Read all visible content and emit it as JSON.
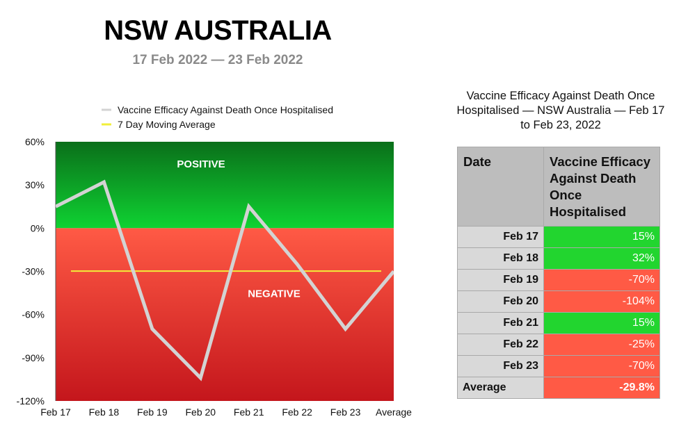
{
  "header": {
    "title": "NSW AUSTRALIA",
    "subtitle": "17 Feb 2022 — 23 Feb 2022"
  },
  "chart_data": {
    "type": "line",
    "categories": [
      "Feb 17",
      "Feb 18",
      "Feb 19",
      "Feb 20",
      "Feb 21",
      "Feb 22",
      "Feb 23",
      "Average"
    ],
    "series": [
      {
        "name": "Vaccine Efficacy Against Death Once Hospitalised",
        "values": [
          15,
          32,
          -70,
          -104,
          15,
          -25,
          -70,
          -30
        ],
        "color": "#d3d3d3"
      },
      {
        "name": "7 Day Moving Average",
        "values": [
          -29.8,
          -29.8,
          -29.8,
          -29.8,
          -29.8,
          -29.8,
          -29.8,
          -29.8
        ],
        "color": "#f2ef3a"
      }
    ],
    "ylim": [
      -120,
      60
    ],
    "yticks": [
      60,
      30,
      0,
      -30,
      -60,
      -90,
      -120
    ],
    "ytick_labels": [
      "60%",
      "30%",
      "0%",
      "-30%",
      "-60%",
      "-90%",
      "-120%"
    ],
    "legend_position": "top",
    "grid": false,
    "regions": [
      {
        "label": "POSITIVE",
        "from": 0,
        "to": 60,
        "color_top": "#0a6f1a",
        "color_bottom": "#0fd232"
      },
      {
        "label": "NEGATIVE",
        "from": -120,
        "to": 0,
        "color_top": "#ff5a45",
        "color_bottom": "#c4161c"
      }
    ]
  },
  "table": {
    "title": "Vaccine Efficacy Against Death Once Hospitalised — NSW Australia — Feb 17 to Feb 23, 2022",
    "headers": [
      "Date",
      "Vaccine Efficacy Against Death Once Hospitalised"
    ],
    "rows": [
      {
        "date": "Feb 17",
        "value": "15%",
        "status": "pos"
      },
      {
        "date": "Feb 18",
        "value": "32%",
        "status": "pos"
      },
      {
        "date": "Feb 19",
        "value": "-70%",
        "status": "neg"
      },
      {
        "date": "Feb 20",
        "value": "-104%",
        "status": "neg"
      },
      {
        "date": "Feb 21",
        "value": "15%",
        "status": "pos"
      },
      {
        "date": "Feb 22",
        "value": "-25%",
        "status": "neg"
      },
      {
        "date": "Feb 23",
        "value": "-70%",
        "status": "neg"
      }
    ],
    "average": {
      "label": "Average",
      "value": "-29.8%",
      "status": "neg"
    }
  }
}
